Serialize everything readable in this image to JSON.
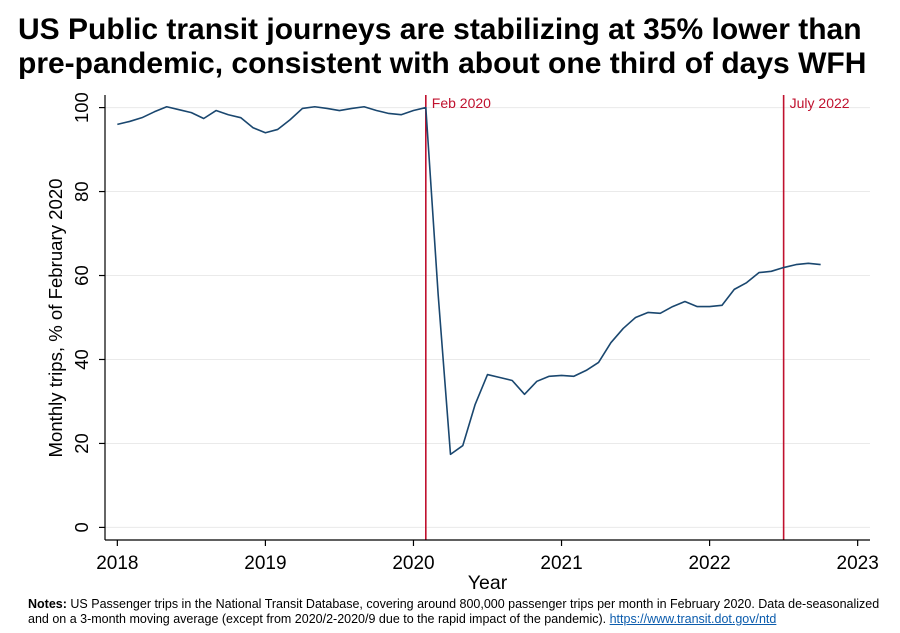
{
  "chart_data": {
    "type": "line",
    "title": "US Public transit journeys are stabilizing at 35% lower than pre-pandemic, consistent with about one third of days WFH",
    "xlabel": "Year",
    "ylabel": "Monthly trips, % of February 2020",
    "x_ticks": [
      "2018",
      "2019",
      "2020",
      "2021",
      "2022",
      "2023"
    ],
    "y_ticks": [
      "0",
      "20",
      "40",
      "60",
      "80",
      "100"
    ],
    "xlim": [
      "2017-12",
      "2023-02"
    ],
    "ylim": [
      -3,
      103
    ],
    "grid": true,
    "x": [
      "2018-01",
      "2018-02",
      "2018-03",
      "2018-04",
      "2018-05",
      "2018-06",
      "2018-07",
      "2018-08",
      "2018-09",
      "2018-10",
      "2018-11",
      "2018-12",
      "2019-01",
      "2019-02",
      "2019-03",
      "2019-04",
      "2019-05",
      "2019-06",
      "2019-07",
      "2019-08",
      "2019-09",
      "2019-10",
      "2019-11",
      "2019-12",
      "2020-01",
      "2020-02",
      "2020-03",
      "2020-04",
      "2020-05",
      "2020-06",
      "2020-07",
      "2020-08",
      "2020-09",
      "2020-10",
      "2020-11",
      "2020-12",
      "2021-01",
      "2021-02",
      "2021-03",
      "2021-04",
      "2021-05",
      "2021-06",
      "2021-07",
      "2021-08",
      "2021-09",
      "2021-10",
      "2021-11",
      "2021-12",
      "2022-01",
      "2022-02",
      "2022-03",
      "2022-04",
      "2022-05",
      "2022-06",
      "2022-07",
      "2022-08",
      "2022-09",
      "2022-10"
    ],
    "series": [
      {
        "values": [
          96.0,
          96.7,
          97.6,
          99.0,
          100.2,
          99.5,
          98.8,
          97.4,
          99.3,
          98.3,
          97.6,
          95.2,
          94.0,
          94.8,
          97.1,
          99.8,
          100.2,
          99.8,
          99.3,
          99.8,
          100.2,
          99.3,
          98.6,
          98.3,
          99.3,
          100.0,
          55.5,
          17.4,
          19.5,
          29.3,
          36.4,
          35.7,
          35.0,
          31.7,
          34.8,
          36.0,
          36.2,
          36.0,
          37.4,
          39.3,
          44.0,
          47.4,
          50.0,
          51.2,
          51.0,
          52.6,
          53.8,
          52.6,
          52.6,
          52.9,
          56.7,
          58.3,
          60.7,
          61.0,
          61.9,
          62.6,
          62.9,
          62.6
        ]
      }
    ],
    "annotations": [
      {
        "x": "2020-02",
        "label": "Feb 2020"
      },
      {
        "x": "2022-07",
        "label": "July 2022"
      }
    ]
  },
  "colors": {
    "series": "#1a476f",
    "annotation": "#c0112e",
    "axis": "#000000",
    "grid": "#eaeaea",
    "link": "#0b5cad"
  },
  "notes": {
    "label": "Notes:",
    "lines": [
      "US Passenger trips in the National Transit Database, covering around 800,000 passenger trips per month in February 2020. Data de-seasonalized",
      "and on a 3-month moving average (except from 2020/2-2020/9 due to the rapid impact of the pandemic)."
    ],
    "link": "https://www.transit.dot.gov/ntd"
  }
}
